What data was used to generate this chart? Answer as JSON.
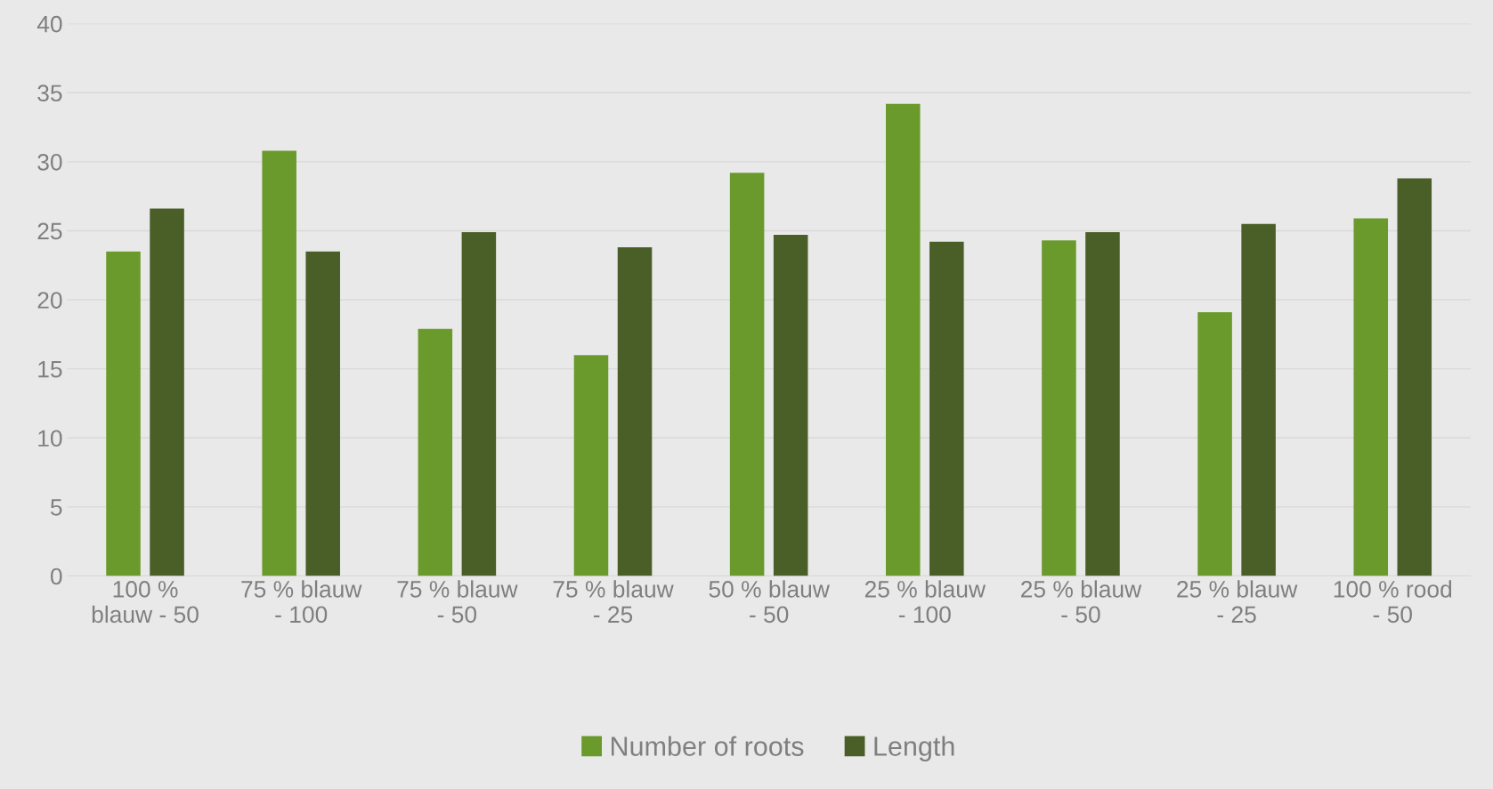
{
  "chart_data": {
    "type": "bar",
    "categories": [
      "100 %\nblauw - 50",
      "75 % blauw\n- 100",
      "75 % blauw\n- 50",
      "75 % blauw\n- 25",
      "50 % blauw\n- 50",
      "25 % blauw\n- 100",
      "25 % blauw\n- 50",
      "25 % blauw\n- 25",
      "100 % rood\n- 50"
    ],
    "series": [
      {
        "name": "Number of roots",
        "color": "#6a9a2b",
        "values": [
          23.5,
          30.8,
          17.9,
          16.0,
          29.2,
          34.2,
          24.3,
          19.1,
          25.9
        ]
      },
      {
        "name": "Length",
        "color": "#4a5e27",
        "values": [
          26.6,
          23.5,
          24.9,
          23.8,
          24.7,
          24.2,
          24.9,
          25.5,
          28.8
        ]
      }
    ],
    "ylim": [
      0,
      40
    ],
    "yticks": [
      0,
      5,
      10,
      15,
      20,
      25,
      30,
      35,
      40
    ],
    "grid": "y",
    "legend": "bottom"
  }
}
